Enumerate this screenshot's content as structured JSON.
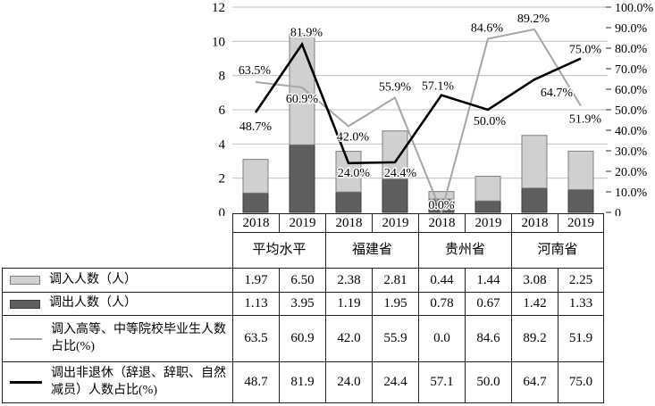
{
  "colors": {
    "bar_in_fill": "#d1cfcf",
    "bar_in_border": "#7f7f7f",
    "bar_out_fill": "#5e5e5e",
    "bar_out_border": "#3a3a3a",
    "line_in": "#a6a6a6",
    "line_out": "#000000",
    "gridline": "#bfbfbf",
    "table_border": "#1f1f1f"
  },
  "chart_data": {
    "type": "combo",
    "subtype": "stacked-bar + line",
    "categories": [
      "2018",
      "2019",
      "2018",
      "2019",
      "2018",
      "2019",
      "2018",
      "2019"
    ],
    "group_labels": [
      "平均水平",
      "福建省",
      "贵州省",
      "河南省"
    ],
    "bar_series": [
      {
        "name": "调入人数（人）",
        "stack": "top",
        "color": "#d1cfcf",
        "border": "#7f7f7f",
        "values": [
          1.97,
          6.5,
          2.38,
          2.81,
          0.44,
          1.44,
          3.08,
          2.25
        ]
      },
      {
        "name": "调出人数（人）",
        "stack": "bottom",
        "color": "#5e5e5e",
        "border": "#3a3a3a",
        "values": [
          1.13,
          3.95,
          1.19,
          1.95,
          0.78,
          0.67,
          1.42,
          1.33
        ]
      }
    ],
    "line_series": [
      {
        "name": "调入高等、中等院校毕业生人数占比(%)",
        "axis": "right",
        "color": "#a6a6a6",
        "values": [
          63.5,
          60.9,
          42.0,
          55.9,
          0.0,
          84.6,
          89.2,
          51.9
        ],
        "labels": [
          "63.5%",
          "60.9%",
          "42.0%",
          "55.9%",
          "0.0%",
          "84.6%",
          "89.2%",
          "51.9%"
        ]
      },
      {
        "name": "调出非退休（辞退、辞职、自然减员）人数占比(%)",
        "axis": "right",
        "color": "#000000",
        "values": [
          48.7,
          81.9,
          24.0,
          24.4,
          57.1,
          50.0,
          64.7,
          75.0
        ],
        "labels": [
          "48.7%",
          "81.9%",
          "24.0%",
          "24.4%",
          "57.1%",
          "50.0%",
          "64.7%",
          "75.0%"
        ]
      }
    ],
    "left_axis": {
      "min": 0,
      "max": 12,
      "tick_step": 2,
      "ticks": [
        "12",
        "10",
        "8",
        "6",
        "4",
        "2",
        "0"
      ]
    },
    "right_axis": {
      "min": 0,
      "max": 100,
      "tick_step": 10,
      "ticks": [
        "100.0%",
        "90.0%",
        "80.0%",
        "70.0%",
        "60.0%",
        "50.0%",
        "40.0%",
        "30.0%",
        "20.0%",
        "10.0%",
        "0"
      ]
    },
    "grid": true,
    "legend_position": "table-left-column"
  },
  "table": {
    "year_cols": [
      "2018",
      "2019",
      "2018",
      "2019",
      "2018",
      "2019",
      "2018",
      "2019"
    ],
    "col_groups": [
      "平均水平",
      "福建省",
      "贵州省",
      "河南省"
    ],
    "rows": [
      {
        "label": "调入人数（人）",
        "swatch": "bar-light",
        "values": [
          "1.97",
          "6.50",
          "2.38",
          "2.81",
          "0.44",
          "1.44",
          "3.08",
          "2.25"
        ]
      },
      {
        "label": "调出人数（人）",
        "swatch": "bar-dark",
        "values": [
          "1.13",
          "3.95",
          "1.19",
          "1.95",
          "0.78",
          "0.67",
          "1.42",
          "1.33"
        ]
      },
      {
        "label": "调入高等、中等院校毕业生人数占比(%)",
        "swatch": "line-gray",
        "values": [
          "63.5",
          "60.9",
          "42.0",
          "55.9",
          "0.0",
          "84.6",
          "89.2",
          "51.9"
        ]
      },
      {
        "label": "调出非退休（辞退、辞职、自然减员）人数占比(%)",
        "swatch": "line-black",
        "values": [
          "48.7",
          "81.9",
          "24.0",
          "24.4",
          "57.1",
          "50.0",
          "64.7",
          "75.0"
        ]
      }
    ]
  }
}
